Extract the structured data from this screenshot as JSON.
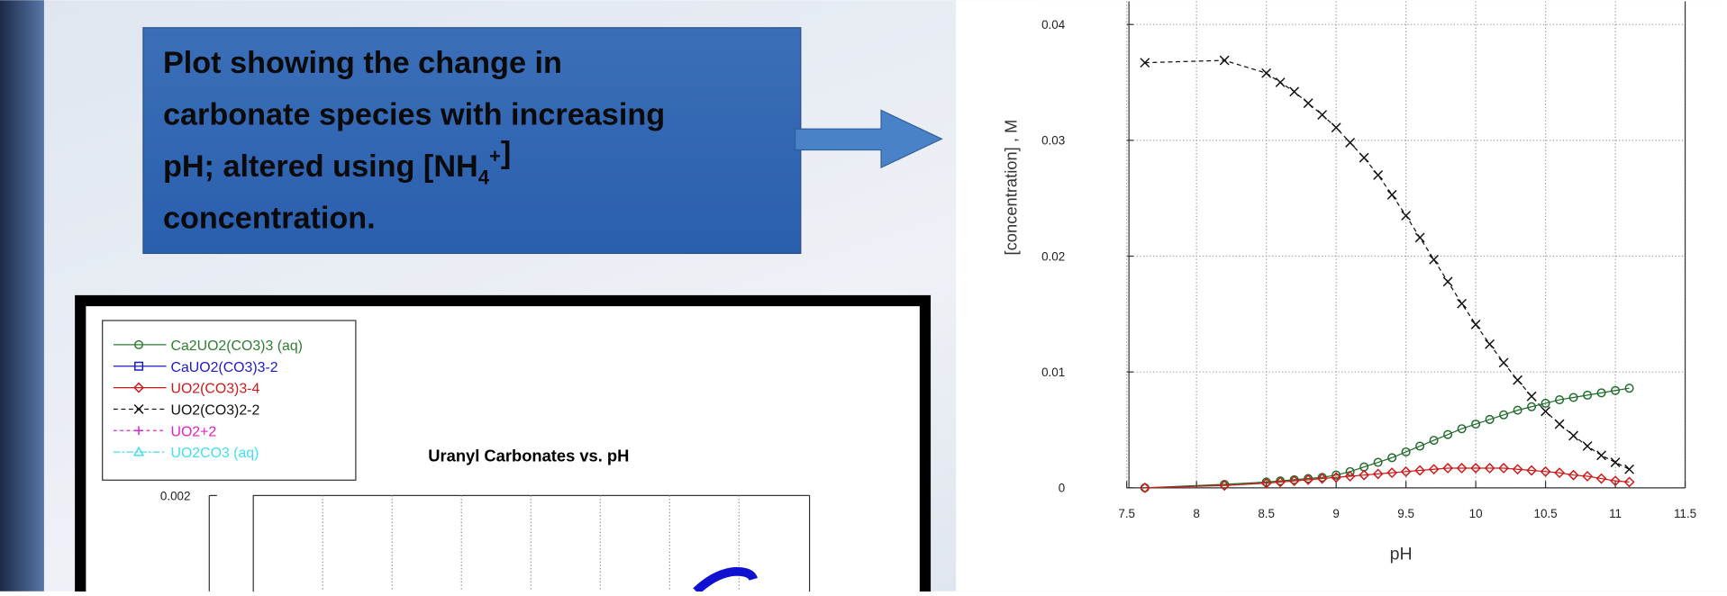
{
  "callout": {
    "lines": [
      [
        {
          "text": "Plot showing the change in"
        }
      ],
      [
        {
          "text": "carbonate species with increasing"
        }
      ],
      [
        {
          "text": "pH;  altered using [NH"
        },
        {
          "sub": "4"
        },
        {
          "sup": "+"
        },
        {
          "text": "]"
        }
      ],
      [
        {
          "text": "concentration."
        }
      ]
    ]
  },
  "chart_data": [
    {
      "type": "line",
      "title": "Uranyl Carbonates vs. pH",
      "yticks": [
        0.002
      ],
      "series": [
        {
          "name": "Ca2UO2(CO3)3 (aq)",
          "color": "#2e7d32",
          "marker": "circle"
        },
        {
          "name": "CaUO2(CO3)3-2",
          "color": "#1a1acc",
          "marker": "square"
        },
        {
          "name": "UO2(CO3)3-4",
          "color": "#cc1a1a",
          "marker": "diamond"
        },
        {
          "name": "UO2(CO3)2-2",
          "color": "#111111",
          "marker": "x"
        },
        {
          "name": "UO2+2",
          "color": "#e020c0",
          "marker": "plus"
        },
        {
          "name": "UO2CO3 (aq)",
          "color": "#40e0f0",
          "marker": "triangle"
        }
      ]
    },
    {
      "type": "line",
      "x_label": "pH",
      "y_label": "[concentration] , M",
      "xlim": [
        7.5,
        11.5
      ],
      "xticks": [
        7.5,
        8,
        8.5,
        9,
        9.5,
        10,
        10.5,
        11,
        11.5
      ],
      "ylim": [
        0,
        0.042
      ],
      "yticks": [
        0,
        0.01,
        0.02,
        0.03,
        0.04
      ],
      "grid": true,
      "x": [
        7.63,
        8.2,
        8.5,
        8.6,
        8.7,
        8.8,
        8.9,
        9.0,
        9.1,
        9.2,
        9.3,
        9.4,
        9.5,
        9.6,
        9.7,
        9.8,
        9.9,
        10.0,
        10.1,
        10.2,
        10.3,
        10.4,
        10.5,
        10.6,
        10.7,
        10.8,
        10.9,
        11.0,
        11.1
      ],
      "series": [
        {
          "color": "#111111",
          "marker": "x",
          "values": [
            0.0367,
            0.0369,
            0.0358,
            0.035,
            0.0342,
            0.0332,
            0.0322,
            0.0311,
            0.0298,
            0.0285,
            0.027,
            0.0253,
            0.0235,
            0.0216,
            0.0197,
            0.0178,
            0.0159,
            0.0141,
            0.0124,
            0.0108,
            0.0093,
            0.0079,
            0.0066,
            0.0055,
            0.0045,
            0.0036,
            0.0028,
            0.0022,
            0.0016
          ]
        },
        {
          "color": "#1e6b2a",
          "marker": "circle",
          "values": [
            0,
            0.0003,
            0.0005,
            0.0006,
            0.0007,
            0.0008,
            0.0009,
            0.0011,
            0.0014,
            0.0018,
            0.0022,
            0.0026,
            0.0031,
            0.0036,
            0.0041,
            0.0046,
            0.0051,
            0.0055,
            0.0059,
            0.0063,
            0.0067,
            0.007,
            0.0073,
            0.0076,
            0.0078,
            0.008,
            0.0082,
            0.0084,
            0.0086
          ]
        },
        {
          "color": "#cc1a1a",
          "marker": "diamond",
          "values": [
            0,
            0.0002,
            0.0004,
            0.0005,
            0.0006,
            0.0007,
            0.0008,
            0.0009,
            0.001,
            0.0011,
            0.0012,
            0.0013,
            0.0014,
            0.0015,
            0.0016,
            0.0017,
            0.0017,
            0.0017,
            0.0017,
            0.0017,
            0.0016,
            0.0015,
            0.0014,
            0.0013,
            0.0011,
            0.001,
            0.0008,
            0.0006,
            0.0005
          ]
        }
      ]
    }
  ]
}
